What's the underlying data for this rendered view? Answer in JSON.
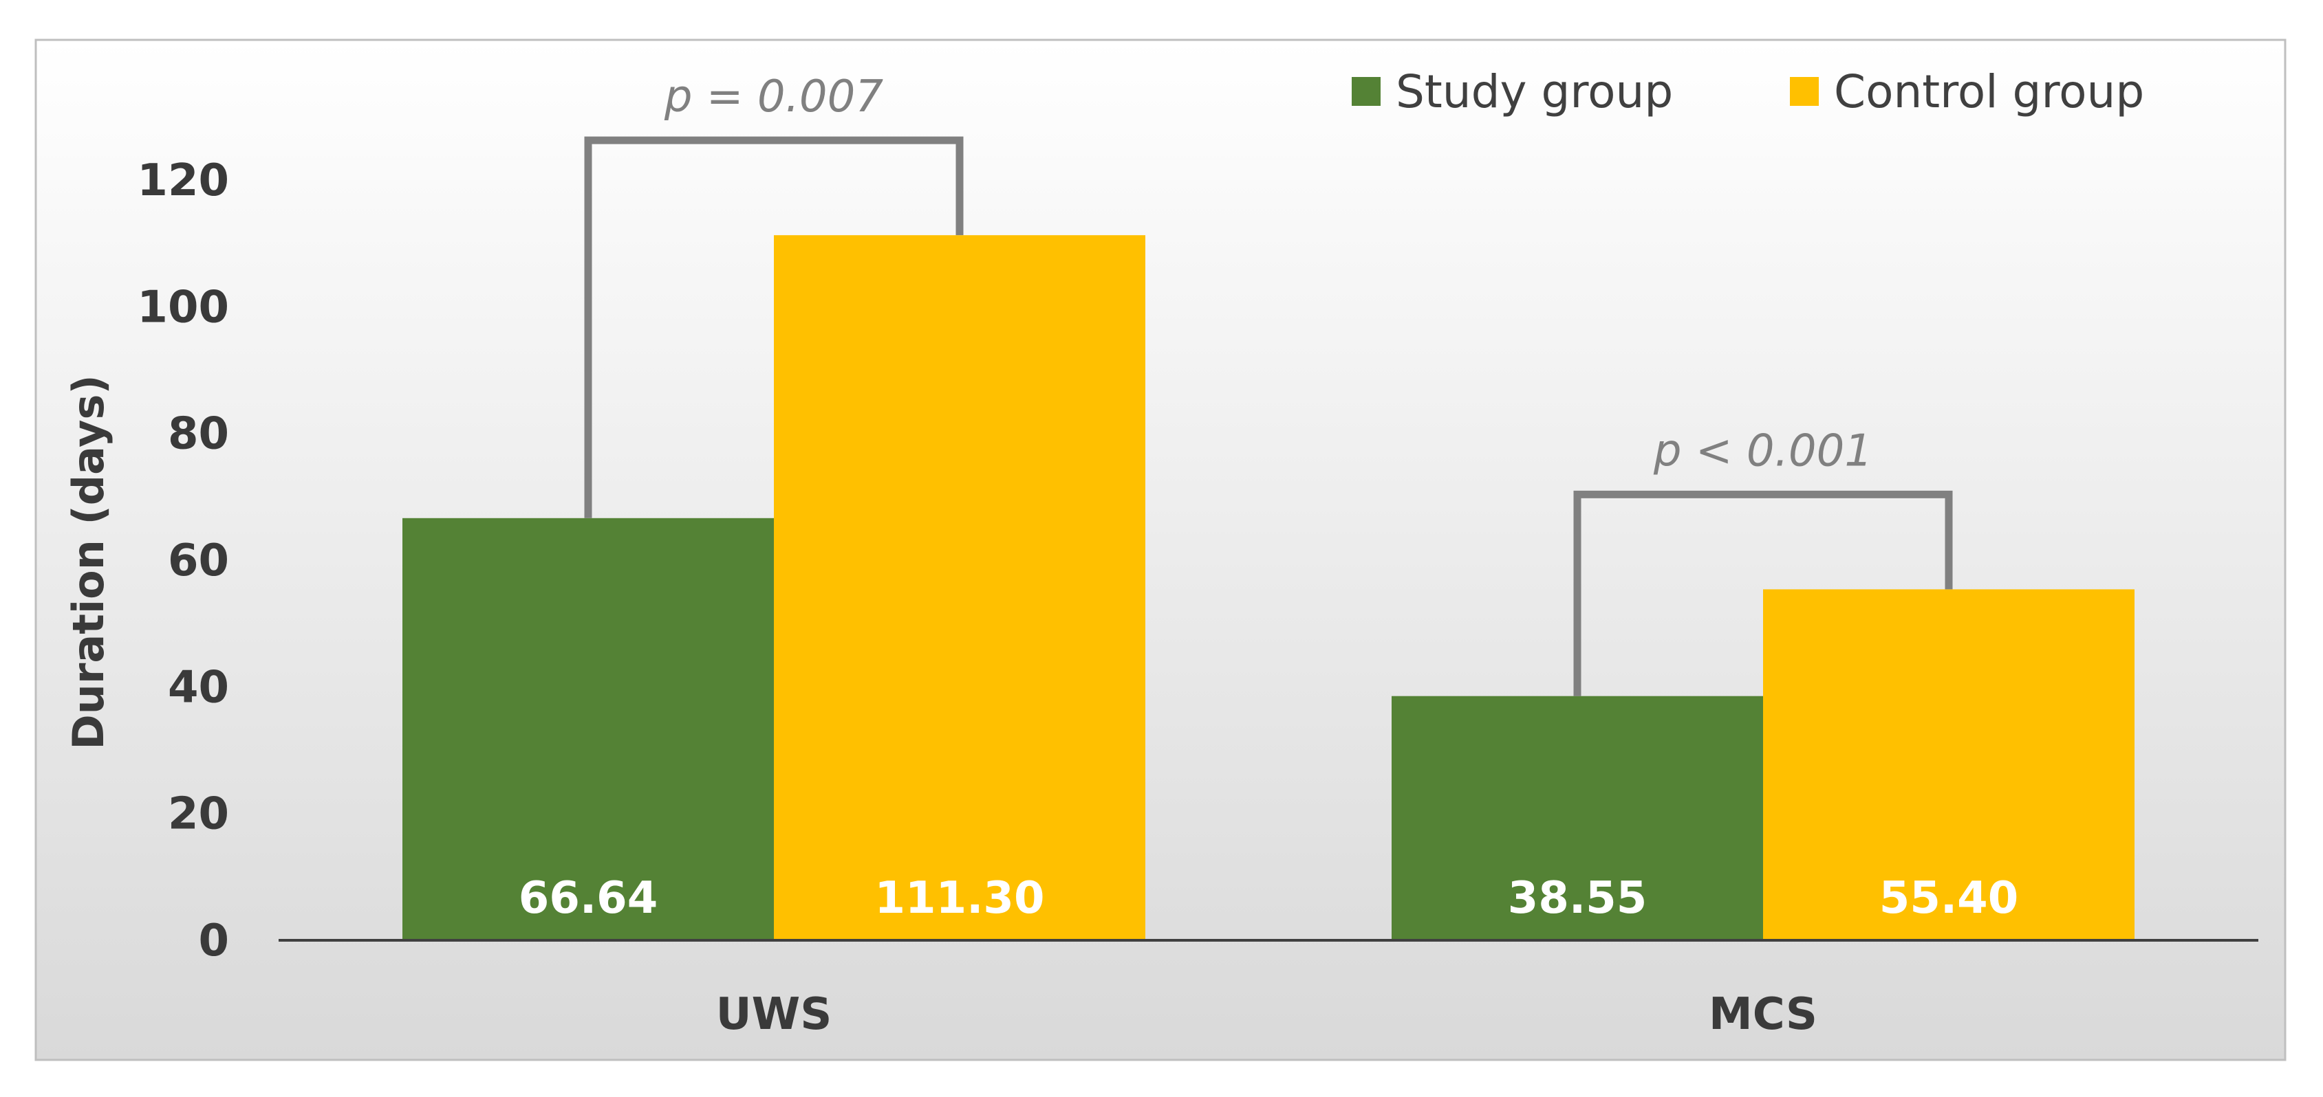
{
  "chart_data": {
    "type": "bar",
    "categories": [
      "UWS",
      "MCS"
    ],
    "series": [
      {
        "name": "Study group",
        "values": [
          66.64,
          38.55
        ],
        "color": "#548235"
      },
      {
        "name": "Control group",
        "values": [
          111.3,
          55.4
        ],
        "color": "#FFC000"
      }
    ],
    "data_labels": [
      [
        "66.64",
        "38.55"
      ],
      [
        "111.30",
        "55.40"
      ]
    ],
    "ylabel": "Duration (days)",
    "xlabel": "",
    "ylim": [
      0,
      120
    ],
    "yticks": [
      0,
      20,
      40,
      60,
      80,
      100,
      120
    ],
    "grid": false,
    "legend_position": "top-right",
    "annotations": [
      {
        "category": "UWS",
        "text": "p = 0.007"
      },
      {
        "category": "MCS",
        "text": "p < 0.001"
      }
    ],
    "bracket_color": "#808080",
    "background": [
      "#ffffff",
      "#d9d9d9"
    ]
  }
}
